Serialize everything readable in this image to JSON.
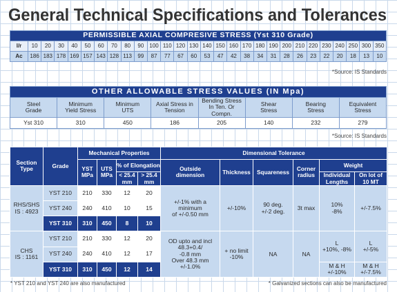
{
  "title": "General Technical Specifications and Tolerances",
  "axial_table": {
    "title": "PERMISSIBLE AXIAL COMPRESIVE STRESS (Yst 310 Grade)",
    "rows": [
      [
        "l/r",
        10,
        20,
        30,
        40,
        50,
        60,
        70,
        80,
        90,
        100,
        110,
        120,
        130,
        140,
        150,
        160,
        170,
        180,
        190,
        200,
        210,
        220,
        230,
        240,
        250,
        300,
        350
      ],
      [
        "Ac",
        186,
        183,
        178,
        169,
        157,
        143,
        128,
        113,
        99,
        87,
        77,
        67,
        60,
        53,
        47,
        42,
        38,
        34,
        31,
        28,
        26,
        23,
        22,
        20,
        18,
        13,
        10
      ]
    ],
    "note": "*Source: IS Standards"
  },
  "stress_table": {
    "title": "OTHER ALLOWABLE STRESS VALUES (IN Mpa)",
    "headers": [
      "Steel\nGrade",
      "Minimum\nYield Stress",
      "Minimum\nUTS",
      "Axial Stress in\nTension",
      "Bending Stress\nIn Ten. Or Compn.",
      "Shear\nStress",
      "Bearing\nStress",
      "Equivalent\nStress"
    ],
    "values": [
      "Yst 310",
      310,
      450,
      186,
      205,
      140,
      232,
      279
    ],
    "note": "*Source: IS Standards"
  },
  "spec_table": {
    "header_rows": [
      [
        "Section\nType",
        "Grade",
        "Mechanical Properties",
        "Dimensional Tolerance"
      ],
      [
        "YST\nMPa",
        "UTS\nMPa",
        "% of Elongation",
        "Outside\ndimension",
        "Thickness",
        "Squareness",
        "Corner\nradius",
        "Weight"
      ],
      [
        "< 25.4\nmm",
        "> 25.4\nmm",
        "Individual\nLengths",
        "On lot of\n10 MT"
      ]
    ],
    "rows": [
      [
        "RHS/SHS\nIS : 4923",
        "YST 210",
        210,
        330,
        12,
        20,
        "+/-1% with a\nminimum\nof +/-0.50 mm",
        "+/-10%",
        "90 deg.\n+/-2 deg.",
        "3t max",
        "10%\n-8%",
        "+/-7.5%"
      ],
      [
        "YST 240",
        240,
        410,
        10,
        15
      ],
      [
        "YST 310",
        310,
        450,
        8,
        10
      ],
      [
        "CHS\nIS : 1161",
        "YST 210",
        210,
        330,
        12,
        20,
        "OD upto and incl\n48.3+0.4/\n-0.8 mm\nOver 48.3 mm\n+/-1.0%",
        "+ no limit\n-10%",
        "NA",
        "NA",
        "L\n+10%, -8%",
        "L\n+/-5%"
      ],
      [
        "YST 240",
        240,
        410,
        12,
        17
      ],
      [
        "YST 310",
        310,
        450,
        12,
        14,
        "M & H\n+/-10%",
        "M & H\n+/-7.5%"
      ]
    ]
  },
  "footnotes": [
    "* YST 210 and YST 240 are also manufactured",
    "* Galvanized sections can also be manufactured"
  ]
}
